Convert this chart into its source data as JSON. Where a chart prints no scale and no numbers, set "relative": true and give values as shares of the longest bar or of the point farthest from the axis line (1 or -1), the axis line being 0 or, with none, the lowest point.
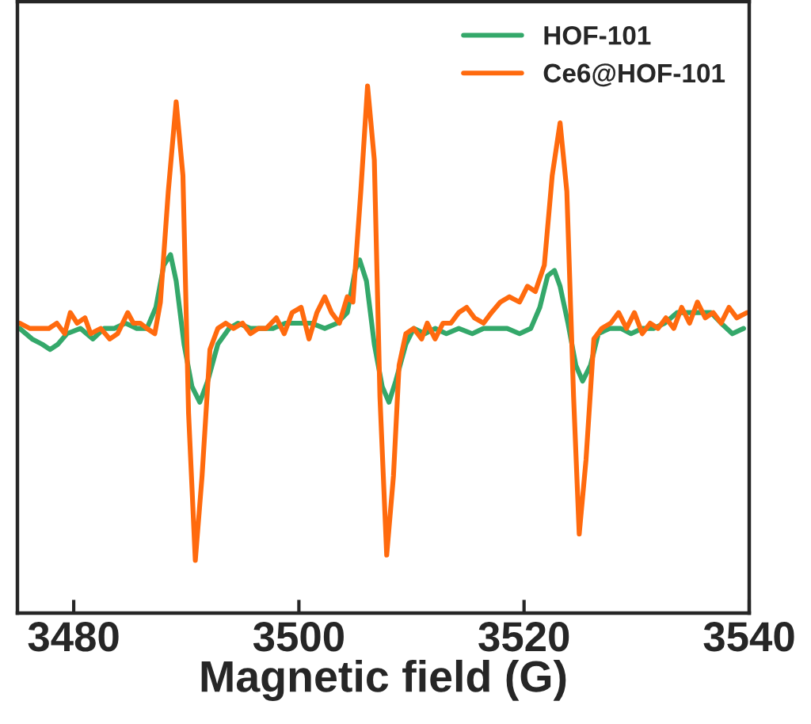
{
  "chart_data": {
    "type": "line",
    "relative": true,
    "xlabel": "Magnetic field (G)",
    "xlim": [
      3475,
      3540
    ],
    "xticks": [
      3480,
      3500,
      3520,
      3540
    ],
    "legend": "top right",
    "grid": false,
    "tick_labels": "x",
    "series": [
      {
        "name": "HOF-101",
        "color": "#34a86a",
        "x": [
          3475.2,
          3476.3,
          3477.2,
          3477.9,
          3478.6,
          3479.4,
          3480.6,
          3481.7,
          3482.7,
          3483.6,
          3484.6,
          3485.6,
          3486.5,
          3487.3,
          3488.0,
          3488.6,
          3489.1,
          3489.8,
          3490.5,
          3491.2,
          3491.9,
          3492.8,
          3493.8,
          3494.6,
          3495.7,
          3496.7,
          3497.7,
          3498.8,
          3499.9,
          3501.1,
          3502.3,
          3503.4,
          3504.3,
          3505.0,
          3505.4,
          3506.0,
          3506.7,
          3507.4,
          3508.0,
          3508.6,
          3509.5,
          3510.2,
          3511.2,
          3512.1,
          3513.1,
          3514.2,
          3515.4,
          3516.4,
          3517.3,
          3518.5,
          3519.6,
          3520.6,
          3521.4,
          3522.1,
          3522.7,
          3523.2,
          3523.9,
          3524.6,
          3525.2,
          3525.9,
          3526.6,
          3527.6,
          3528.6,
          3529.5,
          3530.5,
          3531.5,
          3532.5,
          3533.6,
          3534.6,
          3535.6,
          3536.6,
          3537.5,
          3538.5,
          3539.5
        ],
        "values": [
          0.54,
          0.52,
          0.51,
          0.5,
          0.51,
          0.53,
          0.54,
          0.52,
          0.54,
          0.54,
          0.55,
          0.54,
          0.54,
          0.58,
          0.66,
          0.68,
          0.63,
          0.51,
          0.43,
          0.4,
          0.44,
          0.51,
          0.54,
          0.55,
          0.54,
          0.54,
          0.54,
          0.55,
          0.55,
          0.55,
          0.54,
          0.55,
          0.57,
          0.65,
          0.67,
          0.63,
          0.51,
          0.43,
          0.4,
          0.44,
          0.51,
          0.54,
          0.53,
          0.54,
          0.53,
          0.54,
          0.53,
          0.54,
          0.54,
          0.54,
          0.53,
          0.54,
          0.58,
          0.64,
          0.65,
          0.62,
          0.55,
          0.47,
          0.44,
          0.47,
          0.53,
          0.54,
          0.54,
          0.53,
          0.54,
          0.54,
          0.55,
          0.57,
          0.57,
          0.57,
          0.57,
          0.55,
          0.53,
          0.54
        ]
      },
      {
        "name": "Ce6@HOF-101",
        "color": "#ff6a0e",
        "x": [
          3475.2,
          3476.1,
          3476.9,
          3477.8,
          3478.5,
          3479.2,
          3479.7,
          3480.3,
          3481.0,
          3481.5,
          3482.4,
          3483.2,
          3483.9,
          3484.8,
          3485.3,
          3485.9,
          3486.5,
          3487.2,
          3487.7,
          3488.4,
          3489.1,
          3489.7,
          3490.2,
          3490.8,
          3491.4,
          3492.1,
          3492.8,
          3493.5,
          3494.2,
          3495.0,
          3495.7,
          3496.4,
          3497.1,
          3498.0,
          3498.7,
          3499.4,
          3500.2,
          3500.9,
          3501.6,
          3502.3,
          3502.9,
          3503.6,
          3504.3,
          3504.8,
          3505.5,
          3506.1,
          3506.7,
          3507.2,
          3507.8,
          3508.4,
          3508.9,
          3509.5,
          3510.2,
          3510.9,
          3511.4,
          3512.1,
          3512.8,
          3513.5,
          3514.2,
          3514.9,
          3515.6,
          3516.4,
          3517.1,
          3517.9,
          3518.7,
          3519.6,
          3520.3,
          3521.0,
          3521.8,
          3522.5,
          3523.2,
          3523.8,
          3524.4,
          3524.9,
          3525.5,
          3526.2,
          3526.9,
          3527.7,
          3528.4,
          3529.1,
          3529.8,
          3530.5,
          3531.2,
          3531.9,
          3532.6,
          3533.3,
          3534.0,
          3534.7,
          3535.4,
          3536.1,
          3536.8,
          3537.5,
          3538.2,
          3538.9,
          3539.8
        ],
        "values": [
          0.55,
          0.54,
          0.54,
          0.54,
          0.55,
          0.53,
          0.57,
          0.55,
          0.56,
          0.53,
          0.54,
          0.52,
          0.53,
          0.57,
          0.55,
          0.55,
          0.54,
          0.53,
          0.59,
          0.8,
          0.97,
          0.83,
          0.38,
          0.1,
          0.26,
          0.5,
          0.54,
          0.55,
          0.54,
          0.55,
          0.53,
          0.54,
          0.54,
          0.56,
          0.53,
          0.57,
          0.58,
          0.52,
          0.57,
          0.6,
          0.57,
          0.55,
          0.6,
          0.59,
          0.8,
          1.0,
          0.86,
          0.41,
          0.11,
          0.26,
          0.47,
          0.53,
          0.54,
          0.52,
          0.55,
          0.52,
          0.55,
          0.55,
          0.57,
          0.58,
          0.56,
          0.55,
          0.57,
          0.59,
          0.6,
          0.59,
          0.62,
          0.61,
          0.66,
          0.83,
          0.93,
          0.8,
          0.41,
          0.15,
          0.29,
          0.52,
          0.54,
          0.55,
          0.57,
          0.54,
          0.57,
          0.53,
          0.55,
          0.54,
          0.56,
          0.54,
          0.58,
          0.55,
          0.59,
          0.56,
          0.57,
          0.55,
          0.58,
          0.56,
          0.57
        ]
      }
    ]
  }
}
